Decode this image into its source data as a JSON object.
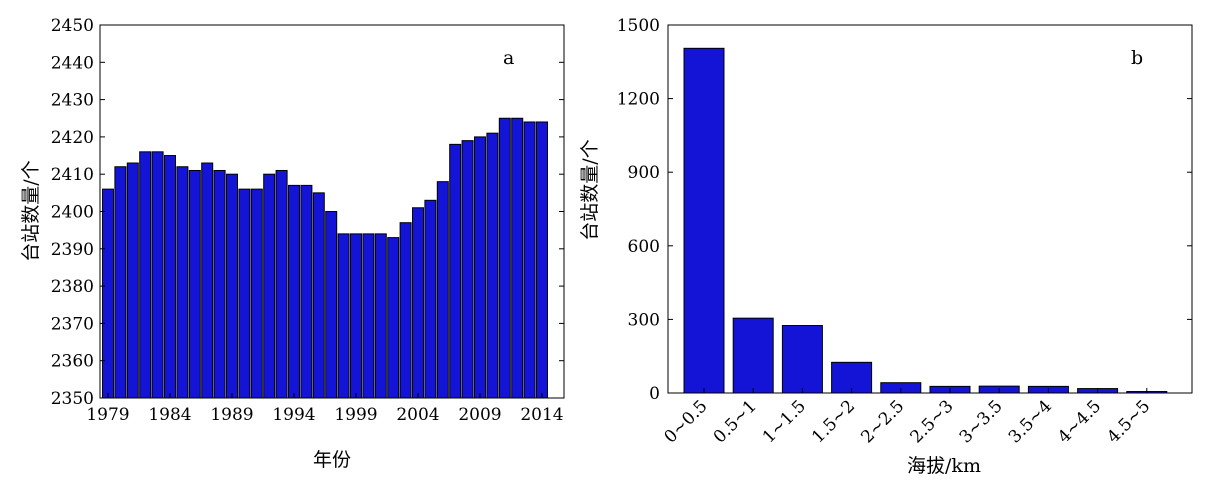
{
  "colors": {
    "bar_fill": "#1414d6",
    "bar_stroke": "#000000"
  },
  "chart_data": [
    {
      "type": "bar",
      "panel_label": "a",
      "xlabel": "年份",
      "ylabel": "台站数量/个",
      "ylim": [
        2350,
        2450
      ],
      "yticks": [
        "2350",
        "2360",
        "2370",
        "2380",
        "2390",
        "2400",
        "2410",
        "2420",
        "2430",
        "2440",
        "2450"
      ],
      "xticks": [
        "1979",
        "1984",
        "1989",
        "1994",
        "1999",
        "2004",
        "2009",
        "2014"
      ],
      "categories": [
        1979,
        1980,
        1981,
        1982,
        1983,
        1984,
        1985,
        1986,
        1987,
        1988,
        1989,
        1990,
        1991,
        1992,
        1993,
        1994,
        1995,
        1996,
        1997,
        1998,
        1999,
        2000,
        2001,
        2002,
        2003,
        2004,
        2005,
        2006,
        2007,
        2008,
        2009,
        2010,
        2011,
        2012,
        2013,
        2014
      ],
      "values": [
        2406,
        2412,
        2413,
        2416,
        2416,
        2415,
        2412,
        2411,
        2413,
        2411,
        2410,
        2406,
        2406,
        2410,
        2411,
        2407,
        2407,
        2405,
        2400,
        2394,
        2394,
        2394,
        2394,
        2393,
        2397,
        2401,
        2403,
        2408,
        2418,
        2419,
        2420,
        2421,
        2425,
        2425,
        2424,
        2424
      ],
      "grid": false
    },
    {
      "type": "bar",
      "panel_label": "b",
      "xlabel": "海拔/km",
      "ylabel": "台站数量/个",
      "ylim": [
        0,
        1500
      ],
      "yticks": [
        "0",
        "300",
        "600",
        "900",
        "1200",
        "1500"
      ],
      "categories": [
        "0~0.5",
        "0.5~1",
        "1~1.5",
        "1.5~2",
        "2~2.5",
        "2.5~3",
        "3~3.5",
        "3.5~4",
        "4~4.5",
        "4.5~5"
      ],
      "values": [
        1405,
        305,
        275,
        125,
        42,
        27,
        28,
        27,
        18,
        6
      ],
      "grid": false
    }
  ]
}
